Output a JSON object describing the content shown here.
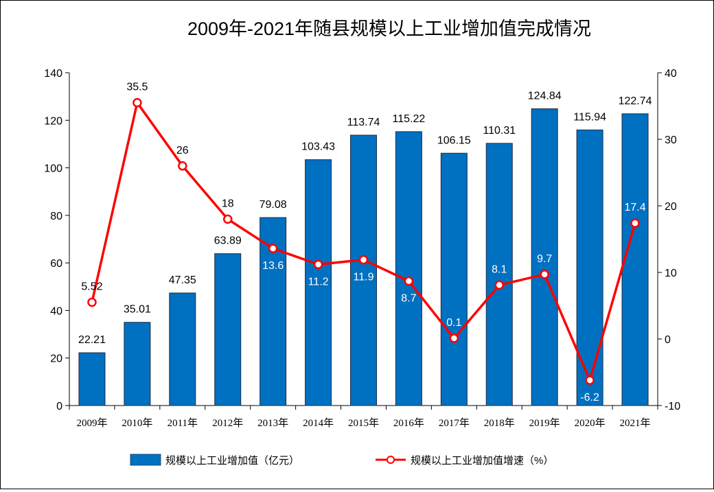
{
  "chart_data": {
    "type": "bar",
    "title": "2009年-2021年随县规模以上工业增加值完成情况",
    "categories": [
      "2009年",
      "2010年",
      "2011年",
      "2012年",
      "2013年",
      "2014年",
      "2015年",
      "2016年",
      "2017年",
      "2018年",
      "2019年",
      "2020年",
      "2021年"
    ],
    "series": [
      {
        "name": "规模以上工业增加值（亿元）",
        "type": "bar",
        "axis": "left",
        "color": "#0070C0",
        "values": [
          22.21,
          35.01,
          47.35,
          63.89,
          79.08,
          103.43,
          113.74,
          115.22,
          106.15,
          110.31,
          124.84,
          115.94,
          122.74
        ],
        "labels": [
          "22.21",
          "35.01",
          "47.35",
          "63.89",
          "79.08",
          "103.43",
          "113.74",
          "115.22",
          "106.15",
          "110.31",
          "124.84",
          "115.94",
          "122.74"
        ]
      },
      {
        "name": "规模以上工业增加值增速（%）",
        "type": "line",
        "axis": "right",
        "color": "#FF0000",
        "values": [
          5.52,
          35.5,
          26,
          18,
          13.6,
          11.2,
          11.9,
          8.7,
          0.1,
          8.1,
          9.7,
          -6.2,
          17.4
        ],
        "labels": [
          "5.52",
          "35.5",
          "26",
          "18",
          "13.6",
          "11.2",
          "11.9",
          "8.7",
          "0.1",
          "8.1",
          "9.7",
          "-6.2",
          "17.4"
        ]
      }
    ],
    "y_left": {
      "min": 0,
      "max": 140,
      "ticks": [
        "0",
        "20",
        "40",
        "60",
        "80",
        "100",
        "120",
        "140"
      ]
    },
    "y_right": {
      "min": -10,
      "max": 40,
      "ticks": [
        "-10",
        "0",
        "10",
        "20",
        "30",
        "40"
      ]
    },
    "grid": false,
    "legend_position": "bottom"
  }
}
